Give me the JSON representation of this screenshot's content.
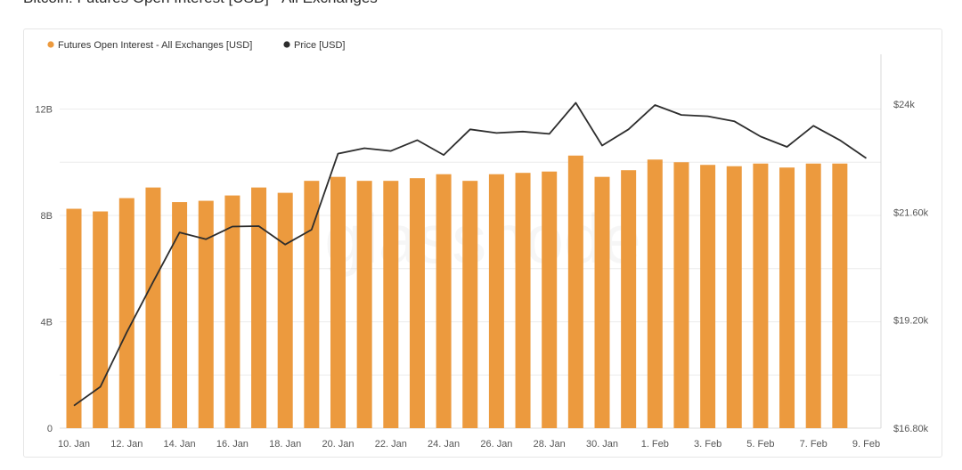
{
  "title": "Bitcoin: Futures Open Interest [USD] - All Exchanges",
  "watermark": "glassnode",
  "colors": {
    "bar": "#ec9a3e",
    "line": "#2d2d2d",
    "grid": "#ececec"
  },
  "chart_data": {
    "type": "bar",
    "title": "Bitcoin: Futures Open Interest [USD] - All Exchanges",
    "legend": {
      "placement": "top-left"
    },
    "grid": true,
    "x_ticks": [
      "10. Jan",
      "12. Jan",
      "14. Jan",
      "16. Jan",
      "18. Jan",
      "20. Jan",
      "22. Jan",
      "24. Jan",
      "26. Jan",
      "28. Jan",
      "30. Jan",
      "1. Feb",
      "3. Feb",
      "5. Feb",
      "7. Feb",
      "9. Feb"
    ],
    "categories": [
      "10. Jan",
      "11. Jan",
      "12. Jan",
      "13. Jan",
      "14. Jan",
      "15. Jan",
      "16. Jan",
      "17. Jan",
      "18. Jan",
      "19. Jan",
      "20. Jan",
      "21. Jan",
      "22. Jan",
      "23. Jan",
      "24. Jan",
      "25. Jan",
      "26. Jan",
      "27. Jan",
      "28. Jan",
      "29. Jan",
      "30. Jan",
      "31. Jan",
      "1. Feb",
      "2. Feb",
      "3. Feb",
      "4. Feb",
      "5. Feb",
      "6. Feb",
      "7. Feb",
      "8. Feb",
      "9. Feb"
    ],
    "y_left": {
      "ticks": [
        "0",
        "4B",
        "8B",
        "12B"
      ],
      "tick_values": [
        0,
        4,
        8,
        12
      ],
      "range": [
        0,
        16
      ],
      "unit": "B USD"
    },
    "y_right": {
      "ticks": [
        "$16.80k",
        "$19.20k",
        "$21.60k",
        "$24k"
      ],
      "tick_values": [
        16.8,
        19.2,
        21.6,
        24.0
      ],
      "range": [
        16.8,
        24.0
      ],
      "unit": "k USD"
    },
    "series": [
      {
        "name": "Futures Open Interest - All Exchanges [USD]",
        "type": "bar",
        "axis": "left",
        "values": [
          8.25,
          8.15,
          8.65,
          9.05,
          8.5,
          8.55,
          8.75,
          9.05,
          8.85,
          9.3,
          9.45,
          9.3,
          9.3,
          9.4,
          9.55,
          9.3,
          9.55,
          9.6,
          9.65,
          10.25,
          9.45,
          9.7,
          10.1,
          10.0,
          9.9,
          9.85,
          9.95,
          9.8,
          9.95,
          9.95,
          null
        ]
      },
      {
        "name": "Price [USD]",
        "type": "line",
        "axis": "right",
        "values": [
          17.3,
          17.72,
          18.93,
          20.05,
          21.15,
          21.0,
          21.28,
          21.29,
          20.88,
          21.21,
          22.9,
          23.02,
          22.96,
          23.2,
          22.87,
          23.44,
          23.36,
          23.39,
          23.34,
          24.03,
          23.08,
          23.44,
          23.98,
          23.76,
          23.73,
          23.62,
          23.28,
          23.05,
          23.52,
          23.2,
          22.8
        ]
      }
    ]
  }
}
